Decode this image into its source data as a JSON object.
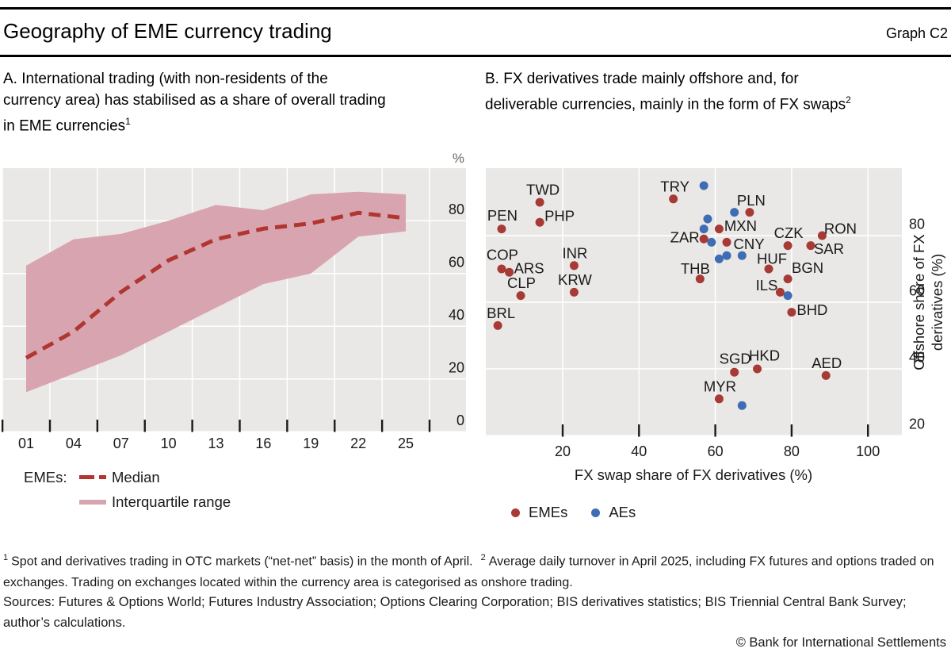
{
  "header": {
    "title": "Geography of EME currency trading",
    "graph_label": "Graph C2"
  },
  "colors": {
    "plot_bg": "#e9e8e6",
    "grid": "#ffffff",
    "tick": "#1a1a1a",
    "text": "#1a1a1a",
    "unit_grey": "#666666",
    "median_red": "#b13530",
    "band_pink": "#d8a4af",
    "eme_red": "#a73a34",
    "ae_blue": "#3f6db4"
  },
  "panel_a": {
    "title_lines": [
      "A. International trading (with non-residents of the",
      "currency area) has stabilised as a share of overall trading",
      "in EME currencies"
    ],
    "title_sup": "1",
    "legend": {
      "group_label": "EMEs:",
      "median_label": "Median",
      "band_label": "Interquartile range"
    }
  },
  "panel_b": {
    "title_lines": [
      "B. FX derivatives trade mainly offshore and, for",
      "deliverable currencies, mainly in the form of FX swaps"
    ],
    "title_sup": "2",
    "legend": {
      "emes": "EMEs",
      "aes": "AEs"
    }
  },
  "chart_data": [
    {
      "panel": "A",
      "type": "line",
      "title": "International trading as a share of overall trading in EME currencies",
      "unit_label": "%",
      "x": [
        2001,
        2004,
        2007,
        2010,
        2013,
        2016,
        2019,
        2022,
        2025
      ],
      "x_tick_labels": [
        "01",
        "04",
        "07",
        "10",
        "13",
        "16",
        "19",
        "22",
        "25"
      ],
      "y_ticks": [
        0,
        20,
        40,
        60,
        80
      ],
      "ylim": [
        0,
        100
      ],
      "grid": true,
      "series": [
        {
          "name": "Median",
          "style": "dashed-line",
          "values": [
            28,
            38,
            53,
            65,
            73,
            77,
            79,
            83,
            81
          ]
        },
        {
          "name": "Interquartile range",
          "style": "band",
          "upper": [
            63,
            73,
            75,
            80,
            86,
            84,
            90,
            91,
            90
          ],
          "lower": [
            15,
            22,
            29,
            38,
            47,
            56,
            60,
            74,
            76
          ]
        }
      ]
    },
    {
      "panel": "B",
      "type": "scatter",
      "xlabel": "FX swap share of FX derivatives (%)",
      "ylabel_lines": [
        "Offshore share of FX",
        "derivatives (%)"
      ],
      "xlim": [
        0,
        109
      ],
      "ylim": [
        20,
        100
      ],
      "x_ticks": [
        20,
        40,
        60,
        80,
        100
      ],
      "y_ticks": [
        20,
        40,
        60,
        80
      ],
      "grid": true,
      "series": [
        {
          "name": "EMEs",
          "color_key": "eme_red",
          "points": [
            {
              "label": "PEN",
              "x": 4,
              "y": 82,
              "dx": 1,
              "dy": -17
            },
            {
              "label": "TWD",
              "x": 14,
              "y": 90,
              "dx": 4,
              "dy": -16
            },
            {
              "label": "PHP",
              "x": 14,
              "y": 84,
              "dx": 25,
              "dy": -8
            },
            {
              "label": "COP",
              "x": 4,
              "y": 70,
              "dx": 1,
              "dy": -18
            },
            {
              "label": "ARS",
              "x": 6,
              "y": 69,
              "dx": 25,
              "dy": -5
            },
            {
              "label": "CLP",
              "x": 9,
              "y": 62,
              "dx": 1,
              "dy": -16
            },
            {
              "label": "INR",
              "x": 23,
              "y": 71,
              "dx": 1,
              "dy": -16
            },
            {
              "label": "KRW",
              "x": 23,
              "y": 63,
              "dx": 1,
              "dy": -16
            },
            {
              "label": "BRL",
              "x": 3,
              "y": 53,
              "dx": 4,
              "dy": -16
            },
            {
              "label": "TRY",
              "x": 49,
              "y": 91,
              "dx": 2,
              "dy": -16
            },
            {
              "label": "ZAR",
              "x": 57,
              "y": 79,
              "dx": -24,
              "dy": -2
            },
            {
              "label": "MXN",
              "x": 61,
              "y": 82,
              "dx": 27,
              "dy": -4
            },
            {
              "label": "CNY",
              "x": 63,
              "y": 78,
              "dx": 28,
              "dy": 2
            },
            {
              "label": "PLN",
              "x": 69,
              "y": 87,
              "dx": 2,
              "dy": -15
            },
            {
              "label": "THB",
              "x": 56,
              "y": 67,
              "dx": -6,
              "dy": -13
            },
            {
              "label": "HUF",
              "x": 74,
              "y": 70,
              "dx": 4,
              "dy": -13
            },
            {
              "label": "CZK",
              "x": 79,
              "y": 77,
              "dx": 1,
              "dy": -16
            },
            {
              "label": "SAR",
              "x": 85,
              "y": 77,
              "dx": 23,
              "dy": 4
            },
            {
              "label": "RON",
              "x": 88,
              "y": 80,
              "dx": 23,
              "dy": -9
            },
            {
              "label": "BGN",
              "x": 79,
              "y": 67,
              "dx": 25,
              "dy": -14
            },
            {
              "label": "ILS",
              "x": 77,
              "y": 63,
              "dx": -17,
              "dy": -9
            },
            {
              "label": "BHD",
              "x": 80,
              "y": 57,
              "dx": 26,
              "dy": -3
            },
            {
              "label": "SGD",
              "x": 65,
              "y": 39,
              "dx": 1,
              "dy": -17
            },
            {
              "label": "HKD",
              "x": 71,
              "y": 40,
              "dx": 9,
              "dy": -17
            },
            {
              "label": "AED",
              "x": 89,
              "y": 38,
              "dx": 1,
              "dy": -16
            },
            {
              "label": "MYR",
              "x": 61,
              "y": 31,
              "dx": 1,
              "dy": -16
            }
          ]
        },
        {
          "name": "AEs",
          "color_key": "ae_blue",
          "points": [
            {
              "x": 57,
              "y": 95
            },
            {
              "x": 58,
              "y": 85
            },
            {
              "x": 57,
              "y": 82
            },
            {
              "x": 59,
              "y": 78
            },
            {
              "x": 65,
              "y": 87
            },
            {
              "x": 61,
              "y": 73
            },
            {
              "x": 63,
              "y": 74
            },
            {
              "x": 67,
              "y": 74
            },
            {
              "x": 79,
              "y": 62
            },
            {
              "x": 67,
              "y": 29
            }
          ]
        }
      ]
    }
  ],
  "footnotes": [
    {
      "sup": "1",
      "text": "Spot and derivatives trading in OTC markets (“net-net” basis) in the month of April."
    },
    {
      "sup": "2",
      "text": "Average daily turnover in April 2025, including FX futures and options traded on exchanges. Trading on exchanges located within the currency area is categorised as onshore trading."
    }
  ],
  "sources": "Sources: Futures & Options World; Futures Industry Association; Options Clearing Corporation; BIS derivatives statistics; BIS Triennial Central Bank Survey; author’s calculations.",
  "copyright": "© Bank for International Settlements"
}
